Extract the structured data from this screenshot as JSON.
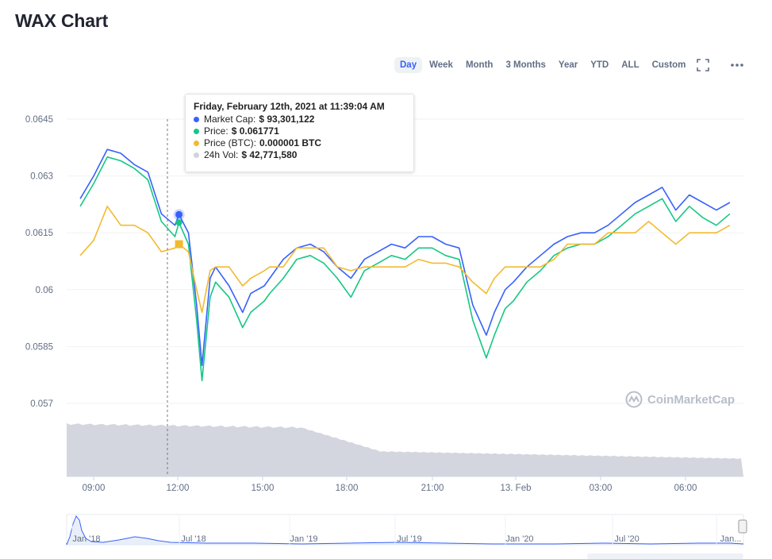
{
  "page": {
    "title": "WAX Chart"
  },
  "ranges": [
    "Day",
    "Week",
    "Month",
    "3 Months",
    "Year",
    "YTD",
    "ALL",
    "Custom"
  ],
  "active_range": "Day",
  "icons": {
    "fullscreen": "fullscreen-icon",
    "more": "more-icon",
    "logo": "coinmarketcap-logo-icon"
  },
  "tooltip": {
    "title": "Friday, February 12th, 2021 at 11:39:04 AM",
    "rows": [
      {
        "label": "Market Cap:",
        "value": "$ 93,301,122",
        "color": "#3861fb"
      },
      {
        "label": "Price:",
        "value": "$ 0.061771",
        "color": "#16c784"
      },
      {
        "label": "Price (BTC):",
        "value": "0.000001 BTC",
        "color": "#f3ba2f"
      },
      {
        "label": "24h Vol:",
        "value": "$ 42,771,580",
        "color": "#d1d4dc"
      }
    ]
  },
  "watermark": "CoinMarketCap",
  "chart_data": {
    "type": "line",
    "x_ticks": [
      "09:00",
      "12:00",
      "15:00",
      "18:00",
      "21:00",
      "13. Feb",
      "03:00",
      "06:00"
    ],
    "y_ticks": [
      "0.0645",
      "0.063",
      "0.0615",
      "0.06",
      "0.0585",
      "0.057"
    ],
    "ylim": [
      0.057,
      0.0645
    ],
    "x_hours": [
      8.0,
      8.5,
      9.0,
      9.5,
      10.0,
      10.5,
      11.0,
      11.5,
      11.65,
      12.0,
      12.3,
      12.5,
      12.8,
      13.0,
      13.5,
      14.0,
      14.3,
      14.8,
      15.0,
      15.5,
      16.0,
      16.5,
      17.0,
      17.5,
      18.0,
      18.5,
      19.0,
      19.5,
      20.0,
      20.5,
      21.0,
      21.5,
      22.0,
      22.5,
      23.0,
      23.3,
      23.7,
      24.0,
      24.5,
      25.0,
      25.5,
      26.0,
      26.5,
      27.0,
      27.5,
      28.0,
      28.5,
      29.0,
      29.5,
      30.0,
      30.5,
      31.0,
      31.5,
      32.0
    ],
    "series": [
      {
        "name": "Price",
        "color": "#16c784",
        "values": [
          0.0622,
          0.0628,
          0.0635,
          0.0634,
          0.0632,
          0.0629,
          0.0618,
          0.0614,
          0.06177,
          0.0612,
          0.0592,
          0.0576,
          0.0598,
          0.0602,
          0.0598,
          0.059,
          0.0594,
          0.0597,
          0.0599,
          0.0603,
          0.0608,
          0.0609,
          0.0607,
          0.0603,
          0.0598,
          0.0605,
          0.0607,
          0.0609,
          0.0608,
          0.0611,
          0.0611,
          0.0609,
          0.0608,
          0.0592,
          0.0582,
          0.0588,
          0.0595,
          0.0597,
          0.0602,
          0.0605,
          0.0609,
          0.0611,
          0.0612,
          0.0612,
          0.0614,
          0.0617,
          0.062,
          0.0622,
          0.0624,
          0.0618,
          0.0622,
          0.0619,
          0.0617,
          0.062
        ]
      },
      {
        "name": "Market Cap",
        "color": "#3861fb",
        "values": [
          0.0624,
          0.063,
          0.0637,
          0.0636,
          0.0633,
          0.0631,
          0.062,
          0.0617,
          0.06198,
          0.0615,
          0.0596,
          0.058,
          0.0603,
          0.0606,
          0.0601,
          0.0594,
          0.0599,
          0.0601,
          0.0603,
          0.0608,
          0.0611,
          0.0612,
          0.061,
          0.0606,
          0.0603,
          0.0608,
          0.061,
          0.0612,
          0.0611,
          0.0614,
          0.0614,
          0.0612,
          0.0611,
          0.0596,
          0.0588,
          0.0594,
          0.06,
          0.0602,
          0.0606,
          0.0609,
          0.0612,
          0.0614,
          0.0615,
          0.0615,
          0.0617,
          0.062,
          0.0623,
          0.0625,
          0.0627,
          0.0621,
          0.0625,
          0.0623,
          0.0621,
          0.0623
        ]
      },
      {
        "name": "Price (BTC)",
        "color": "#f3ba2f",
        "values": [
          0.0609,
          0.0613,
          0.0622,
          0.0617,
          0.0617,
          0.0615,
          0.061,
          0.0611,
          0.0612,
          0.061,
          0.06,
          0.0594,
          0.0605,
          0.0606,
          0.0606,
          0.0601,
          0.0603,
          0.0605,
          0.0606,
          0.0606,
          0.0611,
          0.0611,
          0.0611,
          0.0606,
          0.0605,
          0.0606,
          0.0606,
          0.0606,
          0.0606,
          0.0608,
          0.0607,
          0.0607,
          0.0606,
          0.0602,
          0.0599,
          0.0603,
          0.0606,
          0.0606,
          0.0606,
          0.0606,
          0.0608,
          0.0612,
          0.0612,
          0.0612,
          0.0615,
          0.0615,
          0.0615,
          0.0618,
          0.0615,
          0.0612,
          0.0615,
          0.0615,
          0.0615,
          0.0617
        ]
      }
    ],
    "volume": {
      "name": "24h Vol",
      "color": "#d1d4dc"
    },
    "navigator_labels": [
      "Jan '18",
      "Jul '18",
      "Jan '19",
      "Jul '19",
      "Jan '20",
      "Jul '20",
      "Jan..."
    ],
    "grid": true,
    "legend": "tooltip"
  }
}
